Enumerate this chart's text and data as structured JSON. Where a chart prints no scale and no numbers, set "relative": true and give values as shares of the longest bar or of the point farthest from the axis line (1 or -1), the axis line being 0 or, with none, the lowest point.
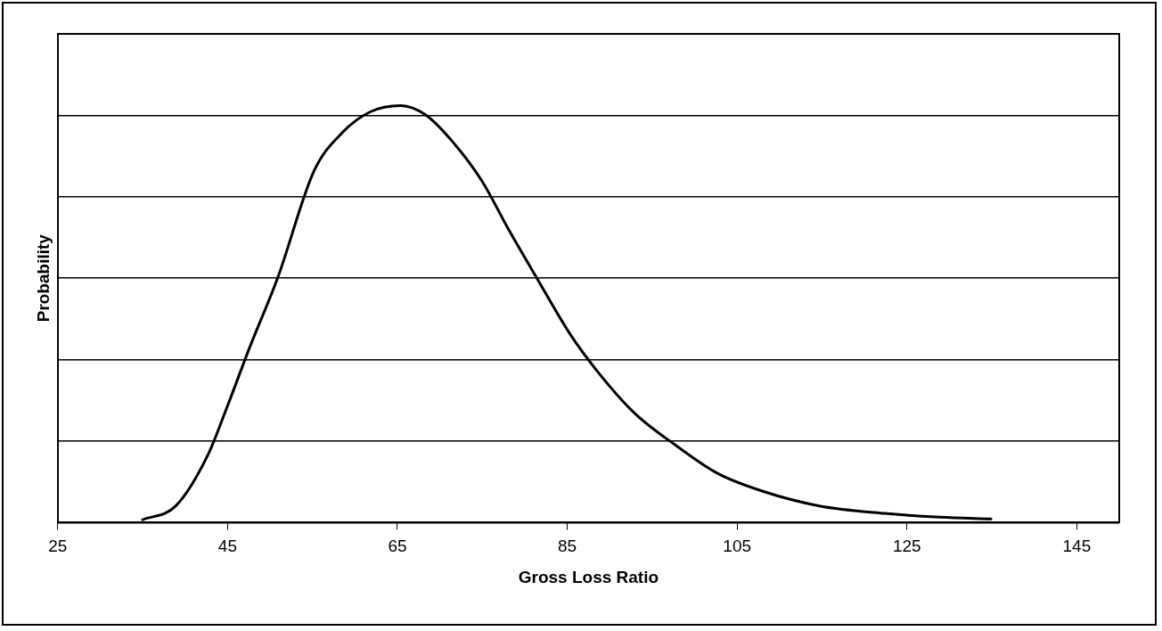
{
  "chart_data": {
    "type": "line",
    "xlabel": "Gross Loss Ratio",
    "ylabel": "Probability",
    "relative": true,
    "grid": "y",
    "legend": false,
    "marker": "none",
    "line_style": "solid",
    "xlim": [
      25,
      150
    ],
    "xticks": [
      25,
      45,
      65,
      85,
      105,
      125,
      145
    ],
    "series": [
      {
        "color": "#000000",
        "x": [
          35.0,
          38.9,
          42.7,
          44.9,
          47.6,
          50.9,
          55.2,
          58.5,
          61.8,
          65.4,
          68.3,
          71.6,
          74.9,
          78.2,
          81.4,
          85.3,
          88.5,
          92.9,
          97.8,
          102.7,
          108.2,
          114.7,
          122.4,
          128.9,
          134.9
        ],
        "values": [
          0.007,
          0.04,
          0.163,
          0.275,
          0.42,
          0.587,
          0.844,
          0.935,
          0.985,
          1.0,
          0.978,
          0.911,
          0.821,
          0.699,
          0.587,
          0.453,
          0.364,
          0.263,
          0.185,
          0.118,
          0.074,
          0.04,
          0.022,
          0.013,
          0.009
        ]
      }
    ]
  }
}
